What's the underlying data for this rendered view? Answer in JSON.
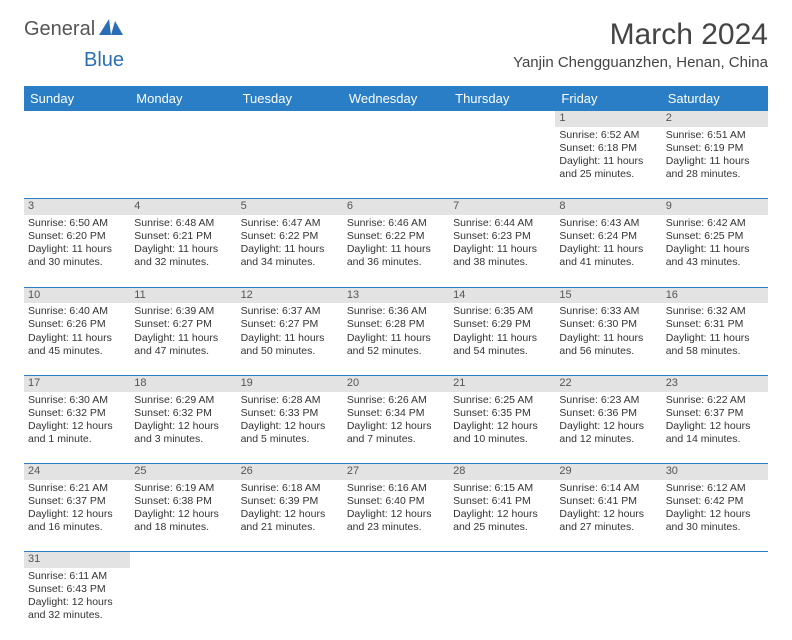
{
  "logo": {
    "text1": "General",
    "text2": "Blue"
  },
  "title": "March 2024",
  "location": "Yanjin Chengguanzhen, Henan, China",
  "colors": {
    "header_bg": "#2a7ec6",
    "header_text": "#ffffff",
    "daynum_bg": "#e3e3e3",
    "border": "#2a7ec6",
    "logo_gray": "#666666",
    "logo_blue": "#2a6fb5"
  },
  "weekdays": [
    "Sunday",
    "Monday",
    "Tuesday",
    "Wednesday",
    "Thursday",
    "Friday",
    "Saturday"
  ],
  "weeks": [
    [
      null,
      null,
      null,
      null,
      null,
      {
        "d": "1",
        "sr": "6:52 AM",
        "ss": "6:18 PM",
        "dl": "11 hours and 25 minutes."
      },
      {
        "d": "2",
        "sr": "6:51 AM",
        "ss": "6:19 PM",
        "dl": "11 hours and 28 minutes."
      }
    ],
    [
      {
        "d": "3",
        "sr": "6:50 AM",
        "ss": "6:20 PM",
        "dl": "11 hours and 30 minutes."
      },
      {
        "d": "4",
        "sr": "6:48 AM",
        "ss": "6:21 PM",
        "dl": "11 hours and 32 minutes."
      },
      {
        "d": "5",
        "sr": "6:47 AM",
        "ss": "6:22 PM",
        "dl": "11 hours and 34 minutes."
      },
      {
        "d": "6",
        "sr": "6:46 AM",
        "ss": "6:22 PM",
        "dl": "11 hours and 36 minutes."
      },
      {
        "d": "7",
        "sr": "6:44 AM",
        "ss": "6:23 PM",
        "dl": "11 hours and 38 minutes."
      },
      {
        "d": "8",
        "sr": "6:43 AM",
        "ss": "6:24 PM",
        "dl": "11 hours and 41 minutes."
      },
      {
        "d": "9",
        "sr": "6:42 AM",
        "ss": "6:25 PM",
        "dl": "11 hours and 43 minutes."
      }
    ],
    [
      {
        "d": "10",
        "sr": "6:40 AM",
        "ss": "6:26 PM",
        "dl": "11 hours and 45 minutes."
      },
      {
        "d": "11",
        "sr": "6:39 AM",
        "ss": "6:27 PM",
        "dl": "11 hours and 47 minutes."
      },
      {
        "d": "12",
        "sr": "6:37 AM",
        "ss": "6:27 PM",
        "dl": "11 hours and 50 minutes."
      },
      {
        "d": "13",
        "sr": "6:36 AM",
        "ss": "6:28 PM",
        "dl": "11 hours and 52 minutes."
      },
      {
        "d": "14",
        "sr": "6:35 AM",
        "ss": "6:29 PM",
        "dl": "11 hours and 54 minutes."
      },
      {
        "d": "15",
        "sr": "6:33 AM",
        "ss": "6:30 PM",
        "dl": "11 hours and 56 minutes."
      },
      {
        "d": "16",
        "sr": "6:32 AM",
        "ss": "6:31 PM",
        "dl": "11 hours and 58 minutes."
      }
    ],
    [
      {
        "d": "17",
        "sr": "6:30 AM",
        "ss": "6:32 PM",
        "dl": "12 hours and 1 minute."
      },
      {
        "d": "18",
        "sr": "6:29 AM",
        "ss": "6:32 PM",
        "dl": "12 hours and 3 minutes."
      },
      {
        "d": "19",
        "sr": "6:28 AM",
        "ss": "6:33 PM",
        "dl": "12 hours and 5 minutes."
      },
      {
        "d": "20",
        "sr": "6:26 AM",
        "ss": "6:34 PM",
        "dl": "12 hours and 7 minutes."
      },
      {
        "d": "21",
        "sr": "6:25 AM",
        "ss": "6:35 PM",
        "dl": "12 hours and 10 minutes."
      },
      {
        "d": "22",
        "sr": "6:23 AM",
        "ss": "6:36 PM",
        "dl": "12 hours and 12 minutes."
      },
      {
        "d": "23",
        "sr": "6:22 AM",
        "ss": "6:37 PM",
        "dl": "12 hours and 14 minutes."
      }
    ],
    [
      {
        "d": "24",
        "sr": "6:21 AM",
        "ss": "6:37 PM",
        "dl": "12 hours and 16 minutes."
      },
      {
        "d": "25",
        "sr": "6:19 AM",
        "ss": "6:38 PM",
        "dl": "12 hours and 18 minutes."
      },
      {
        "d": "26",
        "sr": "6:18 AM",
        "ss": "6:39 PM",
        "dl": "12 hours and 21 minutes."
      },
      {
        "d": "27",
        "sr": "6:16 AM",
        "ss": "6:40 PM",
        "dl": "12 hours and 23 minutes."
      },
      {
        "d": "28",
        "sr": "6:15 AM",
        "ss": "6:41 PM",
        "dl": "12 hours and 25 minutes."
      },
      {
        "d": "29",
        "sr": "6:14 AM",
        "ss": "6:41 PM",
        "dl": "12 hours and 27 minutes."
      },
      {
        "d": "30",
        "sr": "6:12 AM",
        "ss": "6:42 PM",
        "dl": "12 hours and 30 minutes."
      }
    ],
    [
      {
        "d": "31",
        "sr": "6:11 AM",
        "ss": "6:43 PM",
        "dl": "12 hours and 32 minutes."
      },
      null,
      null,
      null,
      null,
      null,
      null
    ]
  ],
  "labels": {
    "sunrise": "Sunrise: ",
    "sunset": "Sunset: ",
    "daylight": "Daylight: "
  }
}
